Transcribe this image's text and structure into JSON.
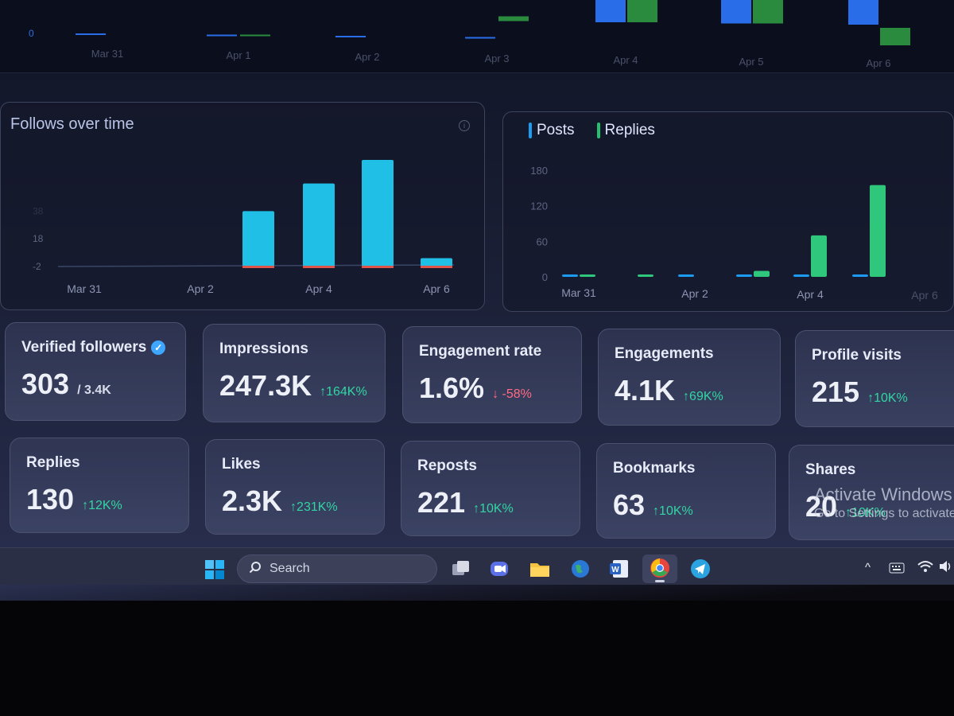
{
  "top_chart": {
    "y_tick": "0",
    "x_labels": [
      "Mar 31",
      "Apr 1",
      "Apr 2",
      "Apr 3",
      "Apr 4",
      "Apr 5",
      "Apr 6"
    ]
  },
  "follows_chart": {
    "title": "Follows over time",
    "info_icon": "info-icon",
    "chart_data": {
      "type": "bar",
      "categories": [
        "Mar 31",
        "Apr 1",
        "Apr 2",
        "Apr 3",
        "Apr 4",
        "Apr 5",
        "Apr 6"
      ],
      "values": [
        0,
        0,
        0,
        38,
        58,
        75,
        4
      ],
      "y_ticks": [
        "38",
        "18",
        "-2"
      ],
      "x_tick_labels": [
        "Mar 31",
        "Apr 2",
        "Apr 4",
        "Apr 6"
      ],
      "bar_color": "#1fbfe6",
      "baseline_color": "#e0554a"
    }
  },
  "posts_chart": {
    "legend": [
      {
        "name": "Posts",
        "color": "#1d9bf0"
      },
      {
        "name": "Replies",
        "color": "#25c06e"
      }
    ],
    "chart_data": {
      "type": "bar",
      "categories": [
        "Mar 31",
        "Apr 1",
        "Apr 2",
        "Apr 3",
        "Apr 4",
        "Apr 5",
        "Apr 6"
      ],
      "series": [
        {
          "name": "Posts",
          "values": [
            2,
            0,
            2,
            2,
            3,
            3,
            0
          ]
        },
        {
          "name": "Replies",
          "values": [
            3,
            3,
            0,
            10,
            70,
            155,
            0
          ]
        }
      ],
      "y_ticks": [
        "180",
        "120",
        "60",
        "0"
      ],
      "x_tick_labels": [
        "Mar 31",
        "Apr 2",
        "Apr 4",
        "Apr 6"
      ],
      "ylim": [
        0,
        180
      ]
    }
  },
  "stats_row1": [
    {
      "label": "Verified followers",
      "value": "303",
      "sub": "/ 3.4K",
      "verified": true
    },
    {
      "label": "Impressions",
      "value": "247.3K",
      "change": "↑164K%",
      "dir": "up"
    },
    {
      "label": "Engagement rate",
      "value": "1.6%",
      "change": "↓ -58%",
      "dir": "down"
    },
    {
      "label": "Engagements",
      "value": "4.1K",
      "change": "↑69K%",
      "dir": "up"
    },
    {
      "label": "Profile visits",
      "value": "215",
      "change": "↑10K%",
      "dir": "up"
    }
  ],
  "stats_row2": [
    {
      "label": "Replies",
      "value": "130",
      "change": "↑12K%",
      "dir": "up"
    },
    {
      "label": "Likes",
      "value": "2.3K",
      "change": "↑231K%",
      "dir": "up"
    },
    {
      "label": "Reposts",
      "value": "221",
      "change": "↑10K%",
      "dir": "up"
    },
    {
      "label": "Bookmarks",
      "value": "63",
      "change": "↑10K%",
      "dir": "up"
    },
    {
      "label": "Shares",
      "value": "20",
      "change": "↑10K%",
      "dir": "up"
    }
  ],
  "watermark": {
    "line1": "Activate Windows",
    "line2": "Go to Settings to activate"
  },
  "taskbar": {
    "search_label": "Search"
  }
}
